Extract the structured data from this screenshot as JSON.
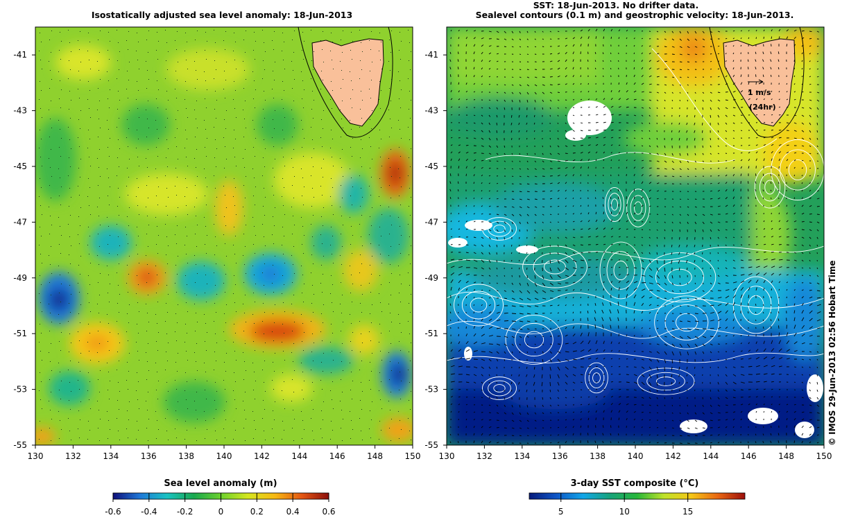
{
  "left_panel": {
    "title": "Isostatically adjusted sea level anomaly: 18-Jun-2013",
    "colorbar": {
      "label": "Sea level anomaly (m)",
      "ticks": [
        "-0.6",
        "-0.4",
        "-0.2",
        "0",
        "0.2",
        "0.4",
        "0.6"
      ],
      "range": [
        -0.6,
        0.6
      ]
    }
  },
  "right_panel": {
    "title_line1": "SST: 18-Jun-2013. No drifter data.",
    "title_line2": "Sealevel contours (0.1 m) and geostrophic velocity: 18-Jun-2013.",
    "scale_arrow_label": "1 m/s",
    "scale_arrow_sublabel": "(24hr)",
    "colorbar": {
      "label": "3-day SST composite (°C)",
      "ticks": [
        "5",
        "10",
        "15"
      ],
      "range": [
        2.5,
        19.5
      ]
    }
  },
  "axes": {
    "lat_ticks": [
      "-41",
      "-43",
      "-45",
      "-47",
      "-49",
      "-51",
      "-53",
      "-55"
    ],
    "lon_ticks": [
      "130",
      "132",
      "134",
      "136",
      "138",
      "140",
      "142",
      "144",
      "146",
      "148",
      "150"
    ],
    "lon_range": [
      130,
      150
    ],
    "lat_range": [
      -55,
      -40
    ]
  },
  "credit": "© IMOS 29-Jun-2013 02:56 Hobart Time",
  "colors": {
    "land": "#f9c09a",
    "sla_scale": [
      "#10107a",
      "#1e78d8",
      "#19c2c2",
      "#19a84e",
      "#6cd12e",
      "#d5e61f",
      "#f7b913",
      "#e45612",
      "#8b0e0b"
    ],
    "sst_scale": [
      "#061a7a",
      "#0e55c6",
      "#12a6e8",
      "#17a37a",
      "#28b73a",
      "#bfe22a",
      "#f5c717",
      "#e96612",
      "#9c0f0b"
    ]
  }
}
